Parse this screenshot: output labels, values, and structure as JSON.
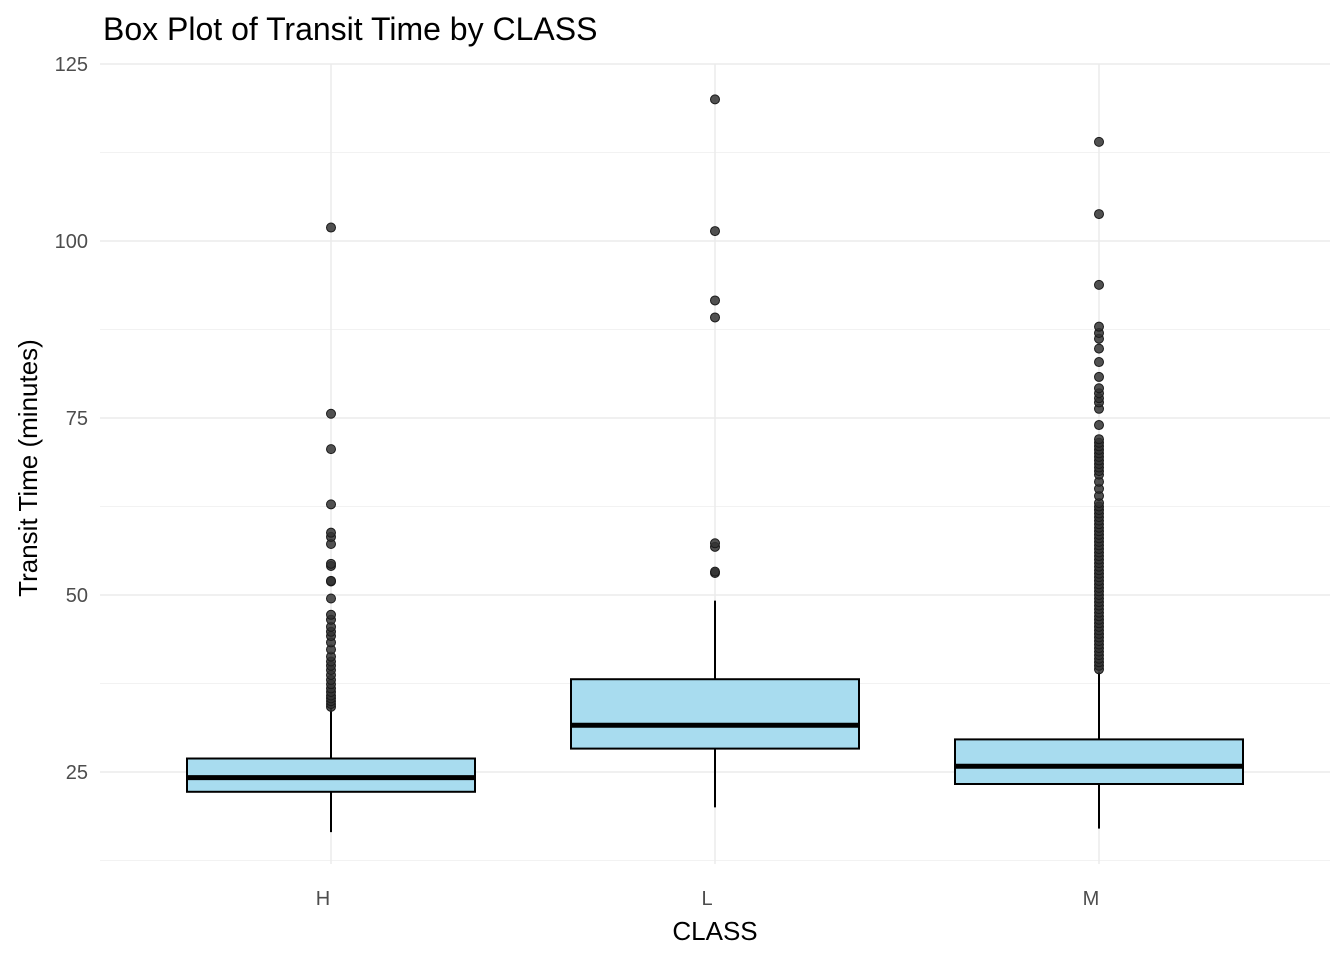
{
  "chart_data": {
    "type": "boxplot",
    "title": "Box Plot of Transit Time by CLASS",
    "xlabel": "CLASS",
    "ylabel": "Transit Time (minutes)",
    "ylim": [
      12,
      125
    ],
    "yticks": [
      25,
      50,
      75,
      100,
      125
    ],
    "grid": true,
    "box_fill": "#a8dcef",
    "box_stroke": "#000000",
    "outlier_color": "#333333",
    "categories": [
      "H",
      "L",
      "M"
    ],
    "boxes": [
      {
        "category": "H",
        "whisker_low": 16.5,
        "q1": 22.2,
        "median": 24.2,
        "q3": 26.9,
        "whisker_high": 34.5,
        "outliers": [
          34.2,
          34.6,
          35.0,
          35.4,
          35.8,
          36.3,
          36.8,
          37.4,
          38.0,
          38.7,
          39.4,
          40.0,
          40.6,
          41.3,
          42.3,
          43.3,
          44.2,
          44.8,
          45.5,
          46.5,
          47.2,
          49.5,
          51.9,
          52.0,
          54.1,
          54.4,
          57.2,
          58.2,
          58.8,
          62.8,
          70.6,
          75.6,
          101.9
        ]
      },
      {
        "category": "L",
        "whisker_low": 20.0,
        "q1": 28.3,
        "median": 31.6,
        "q3": 38.1,
        "whisker_high": 49.2,
        "outliers": [
          53.1,
          53.3,
          56.8,
          57.3,
          89.2,
          91.6,
          101.4,
          120.0
        ]
      },
      {
        "category": "M",
        "whisker_low": 17.0,
        "q1": 23.3,
        "median": 25.8,
        "q3": 29.6,
        "whisker_high": 39.2,
        "outliers": [
          39.5,
          40.0,
          40.5,
          41.0,
          41.5,
          42.0,
          42.5,
          43.0,
          43.5,
          44.0,
          44.5,
          45.0,
          45.5,
          46.0,
          46.5,
          47.0,
          47.5,
          48.0,
          48.5,
          49.0,
          49.5,
          50.0,
          50.5,
          51.0,
          51.5,
          52.0,
          52.5,
          53.0,
          53.5,
          54.0,
          54.5,
          55.0,
          55.5,
          56.0,
          56.5,
          57.0,
          57.5,
          58.0,
          58.5,
          59.0,
          59.5,
          60.0,
          60.5,
          61.0,
          61.5,
          62.0,
          62.5,
          63.0,
          64.0,
          65.0,
          66.0,
          67.0,
          67.5,
          68.0,
          68.5,
          69.0,
          69.5,
          70.0,
          70.5,
          71.0,
          71.5,
          72.0,
          74.0,
          76.3,
          77.2,
          77.8,
          78.5,
          79.2,
          80.8,
          82.9,
          84.8,
          86.2,
          87.0,
          87.9,
          93.8,
          103.8,
          114.0
        ]
      }
    ]
  }
}
